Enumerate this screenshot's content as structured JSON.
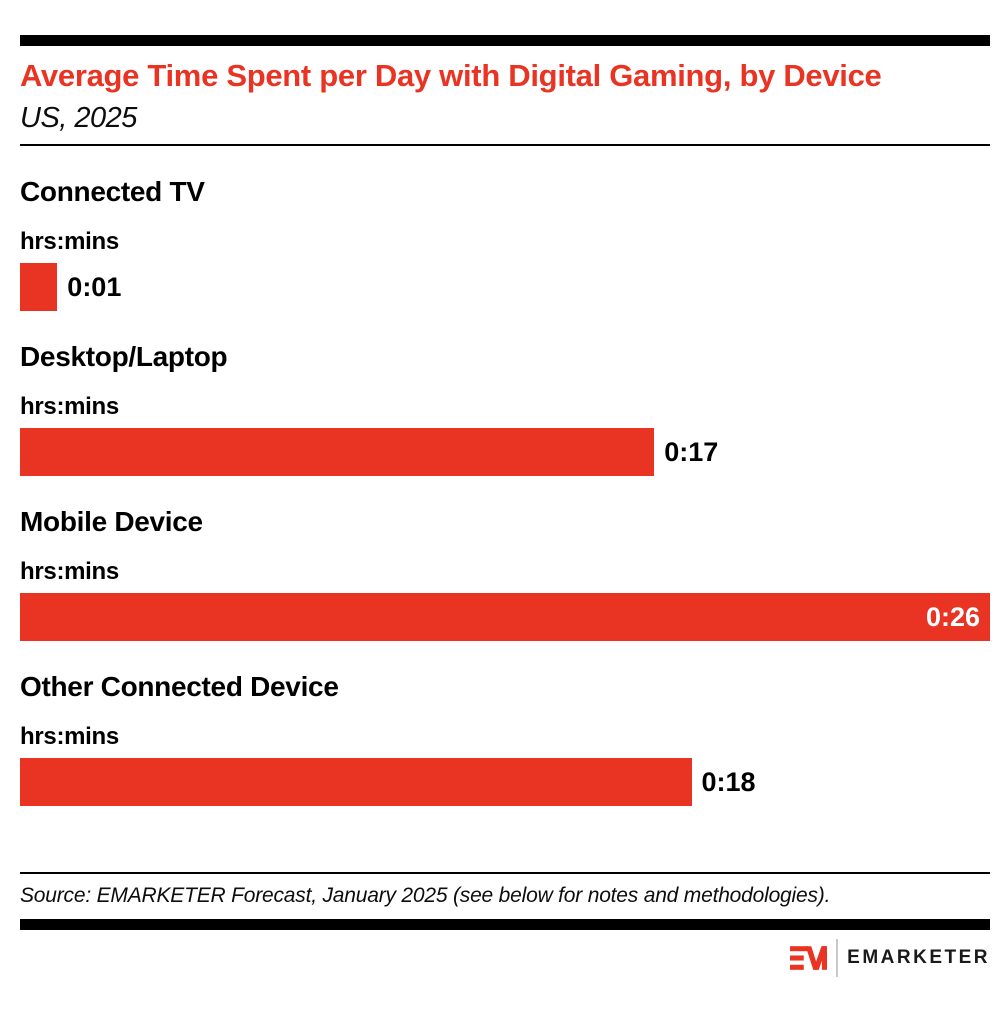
{
  "header": {
    "title": "Average Time Spent per Day with Digital Gaming, by Device",
    "subtitle": "US, 2025"
  },
  "chart_data": {
    "type": "bar",
    "orientation": "horizontal",
    "title": "Average Time Spent per Day with Digital Gaming, by Device",
    "subtitle": "US, 2025",
    "unit_label": "hrs:mins",
    "categories": [
      "Connected TV",
      "Desktop/Laptop",
      "Mobile Device",
      "Other Connected Device"
    ],
    "values_minutes": [
      1,
      17,
      26,
      18
    ],
    "value_labels": [
      "0:01",
      "0:17",
      "0:26",
      "0:18"
    ],
    "xlim_minutes": [
      0,
      26
    ],
    "bar_color": "#E93323",
    "value_label_inside": [
      false,
      false,
      true,
      false
    ],
    "grid": false,
    "legend": "none"
  },
  "footer": {
    "source": "Source: EMARKETER Forecast, January 2025 (see below for notes and methodologies).",
    "logo_text": "EMARKETER"
  },
  "colors": {
    "accent_red": "#E93323",
    "text_black": "#000000",
    "inside_value_text": "#FFFFFF",
    "logo_divider_gray": "#C9C9C9"
  }
}
